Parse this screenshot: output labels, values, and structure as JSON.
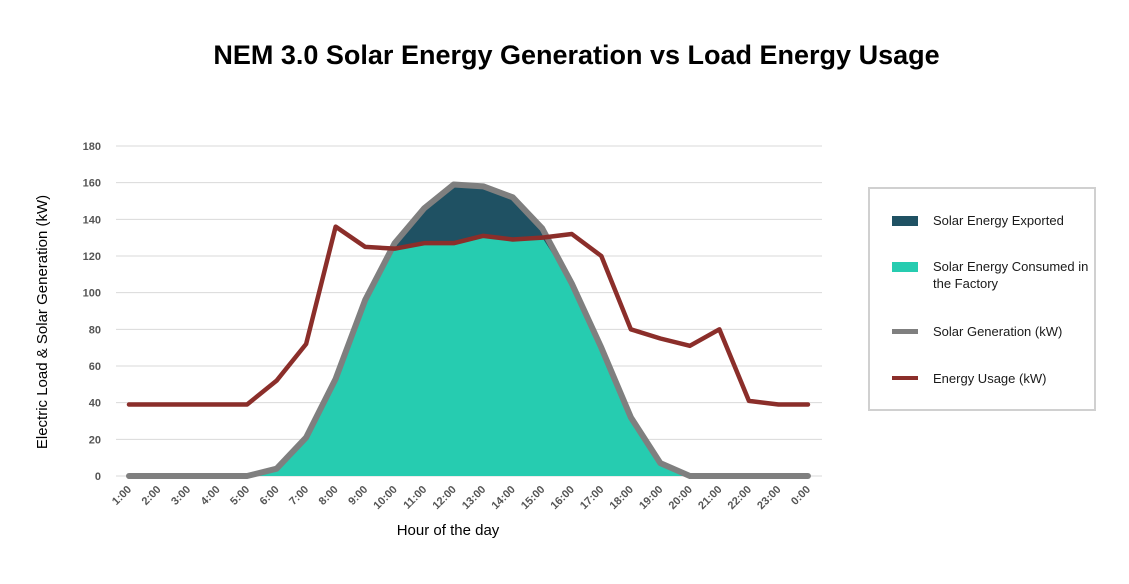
{
  "title": "NEM 3.0 Solar Energy Generation vs Load Energy Usage",
  "chart_data": {
    "type": "area",
    "title": "NEM 3.0 Solar Energy Generation vs Load Energy Usage",
    "xlabel": "Hour of the day",
    "ylabel": "Electric Load & Solar Generation (kW)",
    "ylim": [
      0,
      180
    ],
    "yticks": [
      0,
      20,
      40,
      60,
      80,
      100,
      120,
      140,
      160,
      180
    ],
    "grid": true,
    "legend_position": "right",
    "categories": [
      "1:00",
      "2:00",
      "3:00",
      "4:00",
      "5:00",
      "6:00",
      "7:00",
      "8:00",
      "9:00",
      "10:00",
      "11:00",
      "12:00",
      "13:00",
      "14:00",
      "15:00",
      "16:00",
      "17:00",
      "18:00",
      "19:00",
      "20:00",
      "21:00",
      "22:00",
      "23:00",
      "0:00"
    ],
    "series": [
      {
        "name": "Solar Energy Exported",
        "kind": "area",
        "color": "#1f5163",
        "values": [
          0,
          0,
          0,
          0,
          0,
          0,
          0,
          0,
          0,
          3,
          19,
          32,
          27,
          23,
          5,
          0,
          0,
          0,
          0,
          0,
          0,
          0,
          0,
          0
        ]
      },
      {
        "name": "Solar Energy Consumed in the Factory",
        "kind": "area",
        "color": "#26ccb0",
        "values": [
          0,
          0,
          0,
          0,
          0,
          4,
          21,
          53,
          96,
          124,
          127,
          127,
          131,
          129,
          130,
          105,
          70,
          32,
          7,
          0,
          0,
          0,
          0,
          0
        ]
      },
      {
        "name": "Solar Generation (kW)",
        "kind": "line",
        "color": "#7f7f7f",
        "values": [
          0,
          0,
          0,
          0,
          0,
          4,
          21,
          53,
          96,
          127,
          146,
          159,
          158,
          152,
          135,
          105,
          70,
          32,
          7,
          0,
          0,
          0,
          0,
          0
        ]
      },
      {
        "name": "Energy Usage (kW)",
        "kind": "line",
        "color": "#8b2e2a",
        "values": [
          39,
          39,
          39,
          39,
          39,
          52,
          72,
          136,
          125,
          124,
          127,
          127,
          131,
          129,
          130,
          132,
          120,
          80,
          75,
          71,
          80,
          41,
          39,
          39
        ]
      }
    ]
  },
  "legend": [
    {
      "label": "Solar Energy Exported",
      "icon": "filled-box-swatch",
      "color": "#1f5163"
    },
    {
      "label": "Solar Energy Consumed in the Factory",
      "icon": "filled-box-swatch",
      "color": "#26ccb0"
    },
    {
      "label": "Solar Generation (kW)",
      "icon": "line-swatch",
      "color": "#7f7f7f"
    },
    {
      "label": "Energy Usage (kW)",
      "icon": "line-swatch",
      "color": "#8b2e2a"
    }
  ]
}
